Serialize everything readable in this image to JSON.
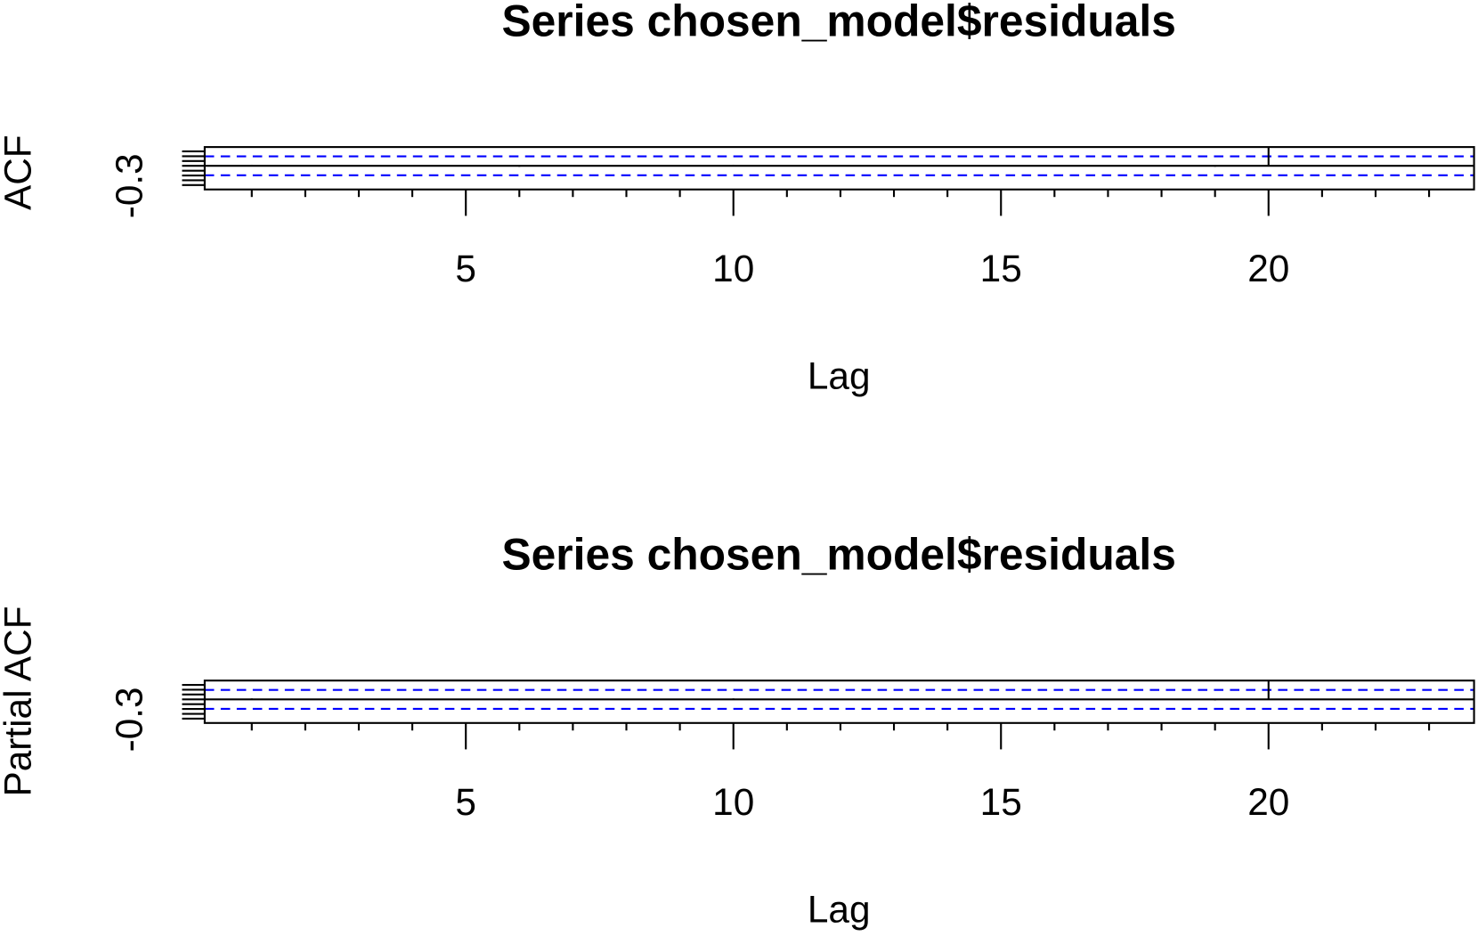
{
  "chart_data": [
    {
      "type": "acf",
      "title": "Series  chosen_model$residuals",
      "xlabel": "Lag",
      "ylabel": "ACF",
      "x": [
        1,
        2,
        3,
        4,
        5,
        6,
        7,
        8,
        9,
        10,
        11,
        12,
        13,
        14,
        15,
        16,
        17,
        18,
        19,
        20,
        21,
        22,
        23,
        24
      ],
      "values": [
        0.02,
        -0.01,
        0.01,
        0.0,
        0.01,
        -0.02,
        0.01,
        0.0,
        -0.01,
        0.02,
        0.0,
        0.01,
        -0.01,
        0.0,
        0.01,
        -0.01,
        0.0,
        0.01,
        -0.02,
        0.39,
        0.0,
        0.01,
        -0.01,
        0.0
      ],
      "ci": 0.196,
      "ci_color": "#0000ff",
      "xlim": [
        0.12,
        23.84
      ],
      "xticks": [
        5,
        10,
        15,
        20
      ],
      "x_minor_ticks": [
        1,
        2,
        3,
        4,
        6,
        7,
        8,
        9,
        11,
        12,
        13,
        14,
        16,
        17,
        18,
        19,
        21,
        22,
        23,
        24
      ],
      "ylim": [
        -0.49,
        0.39
      ],
      "yticks": [
        -0.3
      ],
      "y_minor_ticks": [
        -0.4,
        -0.2,
        -0.1,
        0,
        0.1,
        0.2,
        0.3
      ]
    },
    {
      "type": "acf",
      "title": "Series  chosen_model$residuals",
      "xlabel": "Lag",
      "ylabel": "Partial ACF",
      "x": [
        1,
        2,
        3,
        4,
        5,
        6,
        7,
        8,
        9,
        10,
        11,
        12,
        13,
        14,
        15,
        16,
        17,
        18,
        19,
        20,
        21,
        22,
        23,
        24
      ],
      "values": [
        0.02,
        -0.01,
        0.01,
        0.0,
        0.01,
        -0.02,
        0.01,
        0.0,
        -0.01,
        0.02,
        0.0,
        0.01,
        -0.01,
        0.0,
        0.01,
        -0.01,
        0.0,
        0.01,
        -0.02,
        0.39,
        0.0,
        0.01,
        -0.01,
        0.0
      ],
      "ci": 0.196,
      "ci_color": "#0000ff",
      "xlim": [
        0.12,
        23.84
      ],
      "xticks": [
        5,
        10,
        15,
        20
      ],
      "x_minor_ticks": [
        1,
        2,
        3,
        4,
        6,
        7,
        8,
        9,
        11,
        12,
        13,
        14,
        16,
        17,
        18,
        19,
        21,
        22,
        23,
        24
      ],
      "ylim": [
        -0.49,
        0.39
      ],
      "yticks": [
        -0.3
      ],
      "y_minor_ticks": [
        -0.4,
        -0.2,
        -0.1,
        0,
        0.1,
        0.2,
        0.3
      ]
    }
  ]
}
